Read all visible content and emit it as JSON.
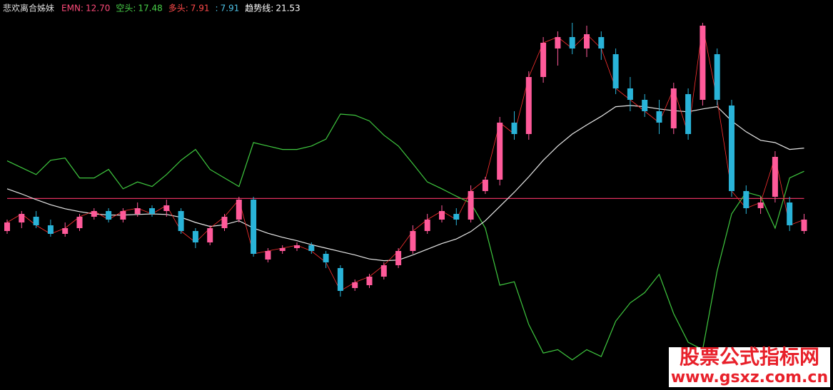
{
  "chart_data": {
    "type": "candlestick",
    "title": "悲欢离合姊妹",
    "header_items": [
      {
        "label": "EMN:",
        "value": "12.70",
        "color": "#ff4a7a"
      },
      {
        "label": "空头:",
        "value": "17.48",
        "color": "#49d049"
      },
      {
        "label": "多头:",
        "value": "7.91",
        "color": "#ff4a4a"
      },
      {
        "label": ":",
        "value": "7.91",
        "color": "#4ec3e8"
      },
      {
        "label": "趋势线:",
        "value": "21.53",
        "color": "#ffffff"
      }
    ],
    "ylim": [
      -20,
      45
    ],
    "up_color": "#ff5a9a",
    "down_color": "#29b3d8",
    "close_line_color": "#ff3030",
    "candles": [
      [
        7,
        8.5,
        9,
        6.5
      ],
      [
        8.5,
        10,
        10.5,
        7.5
      ],
      [
        9.5,
        8,
        10.5,
        7.5
      ],
      [
        8,
        6.5,
        9,
        6
      ],
      [
        6.5,
        7.5,
        8.5,
        6
      ],
      [
        7.5,
        9.5,
        10,
        7
      ],
      [
        9.5,
        10.5,
        11,
        9
      ],
      [
        10.5,
        9,
        11,
        8.5
      ],
      [
        9,
        10.5,
        11,
        8.5
      ],
      [
        10,
        11,
        12,
        9.5
      ],
      [
        11,
        10,
        11.5,
        9.5
      ],
      [
        10.5,
        11.5,
        12.5,
        9.5
      ],
      [
        10.5,
        7,
        11,
        6.5
      ],
      [
        7,
        5,
        7.5,
        4
      ],
      [
        5,
        7.5,
        8,
        4.5
      ],
      [
        7.5,
        9.5,
        10,
        7
      ],
      [
        9,
        12.5,
        13,
        8.5
      ],
      [
        12.5,
        3,
        13,
        2.5
      ],
      [
        2,
        3.5,
        4,
        1.5
      ],
      [
        3.5,
        4,
        4.5,
        3
      ],
      [
        4,
        4.5,
        5,
        3.5
      ],
      [
        4.5,
        3.5,
        5,
        3
      ],
      [
        3,
        1.5,
        3.5,
        0.5
      ],
      [
        0.5,
        -3.5,
        1,
        -4.5
      ],
      [
        -3,
        -2,
        -1.5,
        -3.5
      ],
      [
        -2.5,
        -1,
        -0.5,
        -3
      ],
      [
        -1,
        1,
        1.5,
        -1.5
      ],
      [
        1,
        3.5,
        4,
        0.5
      ],
      [
        3.5,
        7,
        8,
        3
      ],
      [
        7,
        9,
        10,
        6.5
      ],
      [
        9,
        10.5,
        11.5,
        8.5
      ],
      [
        10,
        9,
        11,
        8
      ],
      [
        9,
        14,
        15,
        8.5
      ],
      [
        14,
        16,
        16.5,
        13.5
      ],
      [
        16,
        26,
        27,
        15
      ],
      [
        26,
        24,
        28,
        23
      ],
      [
        24,
        34,
        35,
        23
      ],
      [
        34,
        40,
        41,
        33
      ],
      [
        39,
        41,
        42,
        36
      ],
      [
        41,
        39,
        43.5,
        38
      ],
      [
        39,
        41.5,
        43,
        37.5
      ],
      [
        41,
        39,
        42,
        37
      ],
      [
        38,
        32,
        39,
        31
      ],
      [
        32,
        30,
        34,
        28
      ],
      [
        30,
        28,
        31,
        27
      ],
      [
        28,
        26,
        30,
        24
      ],
      [
        25,
        32,
        33,
        24
      ],
      [
        31,
        24,
        32,
        23
      ],
      [
        30,
        43,
        43.5,
        29
      ],
      [
        38,
        30,
        39,
        29
      ],
      [
        29,
        14,
        30,
        13
      ],
      [
        14,
        11,
        15,
        10
      ],
      [
        11,
        12,
        13,
        10
      ],
      [
        13,
        20,
        21,
        12
      ],
      [
        12,
        8,
        13,
        7
      ],
      [
        7,
        9,
        10,
        6.5
      ]
    ],
    "series": [
      {
        "name": "EMN",
        "color": "#e0305f",
        "values": [
          12.7,
          12.7,
          12.7,
          12.7,
          12.7,
          12.7,
          12.7,
          12.7,
          12.7,
          12.7,
          12.7,
          12.7,
          12.7,
          12.7,
          12.7,
          12.7,
          12.7,
          12.7,
          12.7,
          12.7,
          12.7,
          12.7,
          12.7,
          12.7,
          12.7,
          12.7,
          12.7,
          12.7,
          12.7,
          12.7,
          12.7,
          12.7,
          12.7,
          12.7,
          12.7,
          12.7,
          12.7,
          12.7,
          12.7,
          12.7,
          12.7,
          12.7,
          12.7,
          12.7,
          12.7,
          12.7,
          12.7,
          12.7,
          12.7,
          12.7,
          12.7,
          12.7,
          12.7,
          12.7,
          12.7,
          12.7
        ]
      },
      {
        "name": "空头",
        "color": "#3fc83f",
        "values": [
          19.3,
          18.1,
          16.9,
          19.4,
          19.8,
          16.3,
          16.3,
          17.8,
          14.4,
          15.6,
          14.8,
          16.9,
          19.4,
          21.3,
          17.8,
          16.3,
          14.8,
          22.5,
          21.9,
          21.3,
          21.3,
          21.9,
          23.1,
          27.5,
          27.3,
          26.3,
          23.8,
          21.9,
          18.8,
          15.6,
          14.4,
          13.1,
          11.9,
          7.5,
          -2.5,
          -1.9,
          -9.4,
          -14.4,
          -13.8,
          -15.6,
          -13.8,
          -15,
          -8.8,
          -5.6,
          -3.8,
          -0.6,
          -7.5,
          -12.5,
          -13.8,
          0,
          10,
          13.8,
          13.1,
          7.5,
          16.3,
          17.48
        ]
      },
      {
        "name": "趋势线",
        "color": "#e8e8e8",
        "values": [
          14.4,
          13.5,
          12.5,
          11.6,
          10.9,
          10.4,
          10,
          9.8,
          9.8,
          9.9,
          10,
          9.9,
          9.4,
          8.5,
          7.8,
          8.1,
          8.8,
          7.5,
          6.6,
          5.9,
          5.3,
          4.6,
          4,
          3.4,
          2.8,
          2.1,
          1.8,
          1.9,
          2.8,
          3.8,
          4.8,
          5.6,
          6.9,
          8.8,
          11.3,
          13.8,
          16.5,
          19.4,
          21.9,
          24,
          25.6,
          27.1,
          28.8,
          29,
          28.8,
          28.4,
          28.1,
          27.9,
          28.4,
          28.8,
          26.3,
          24.4,
          22.9,
          22.5,
          21.3,
          21.53
        ]
      }
    ],
    "watermark": {
      "title": "股票公式指标网",
      "url": "www.gsxz.com.cn"
    }
  }
}
